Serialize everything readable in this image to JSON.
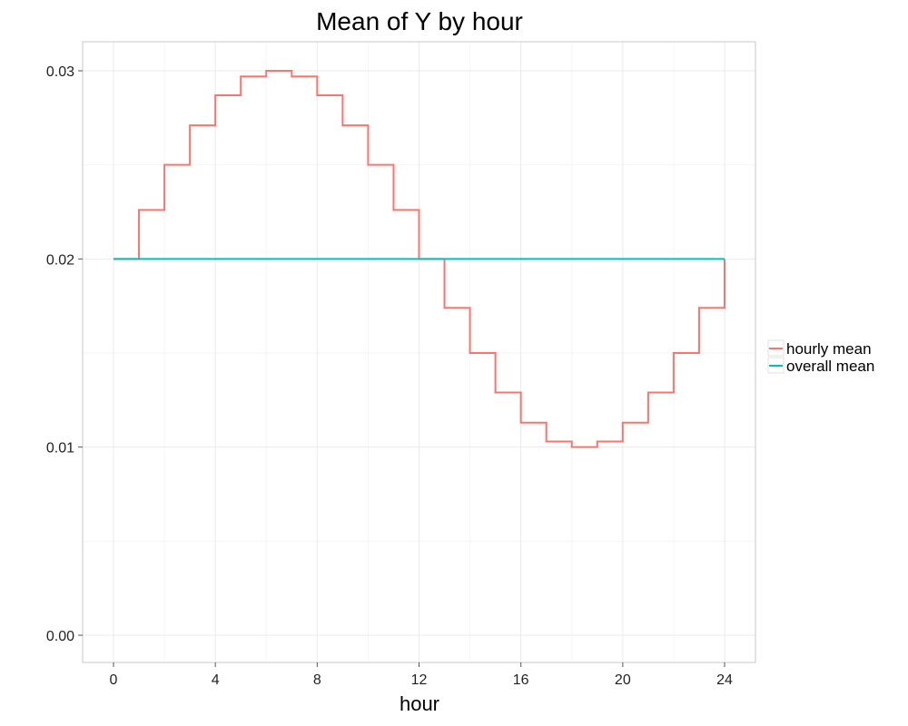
{
  "chart_data": {
    "type": "line",
    "title": "Mean of Y by hour",
    "xlabel": "hour",
    "ylabel": "",
    "xlim": [
      0,
      24
    ],
    "ylim": [
      0,
      0.03
    ],
    "x_ticks": [
      0,
      4,
      8,
      12,
      16,
      20,
      24
    ],
    "y_ticks": [
      0.0,
      0.01,
      0.02,
      0.03
    ],
    "y_tick_labels": [
      "0.00",
      "0.01",
      "0.02",
      "0.03"
    ],
    "grid": true,
    "step": true,
    "legend_position": "right",
    "series": [
      {
        "name": "hourly mean",
        "color": "#F8766D",
        "x": [
          0,
          1,
          2,
          3,
          4,
          5,
          6,
          7,
          8,
          9,
          10,
          11,
          12,
          13,
          14,
          15,
          16,
          17,
          18,
          19,
          20,
          21,
          22,
          23,
          24
        ],
        "values": [
          0.02,
          0.0226,
          0.025,
          0.0271,
          0.0287,
          0.0297,
          0.03,
          0.0297,
          0.0287,
          0.0271,
          0.025,
          0.0226,
          0.02,
          0.0174,
          0.015,
          0.0129,
          0.0113,
          0.0103,
          0.01,
          0.0103,
          0.0113,
          0.0129,
          0.015,
          0.0174,
          0.02
        ]
      },
      {
        "name": "overall mean",
        "color": "#00BFC4",
        "x": [
          0,
          24
        ],
        "values": [
          0.02,
          0.02
        ]
      }
    ]
  }
}
